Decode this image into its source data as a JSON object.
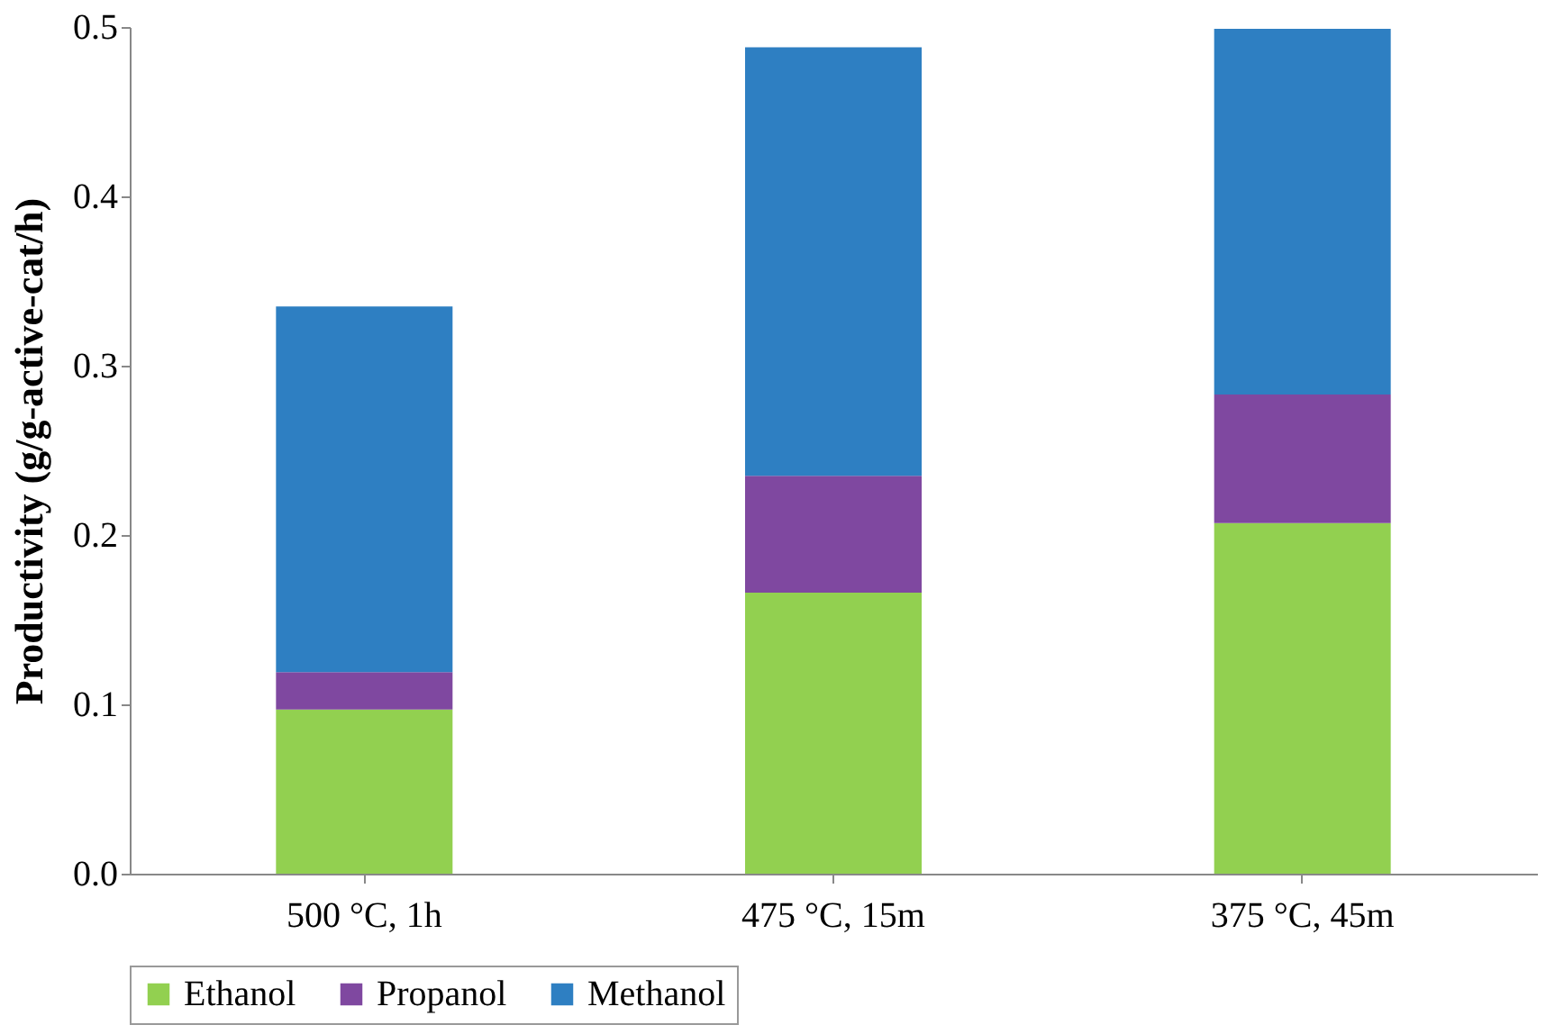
{
  "chart_data": {
    "type": "bar",
    "stacked": true,
    "ylabel": "Productivity (g/g-active-cat/h)",
    "categories": [
      "500 °C, 1h",
      "475 °C, 15m",
      "375 °C, 45m"
    ],
    "series": [
      {
        "name": "Ethanol",
        "color": "#92d050",
        "values": [
          0.097,
          0.166,
          0.207
        ]
      },
      {
        "name": "Propanol",
        "color": "#7f48a0",
        "values": [
          0.022,
          0.069,
          0.076
        ]
      },
      {
        "name": "Methanol",
        "color": "#2e7fc2",
        "values": [
          0.216,
          0.253,
          0.216
        ]
      }
    ],
    "ylim": [
      0,
      0.5
    ],
    "yticks": [
      {
        "value": 0,
        "label": "0.0"
      },
      0.1,
      0.2,
      0.3,
      0.4,
      0.5
    ],
    "grid": false,
    "legend": "bottom"
  }
}
